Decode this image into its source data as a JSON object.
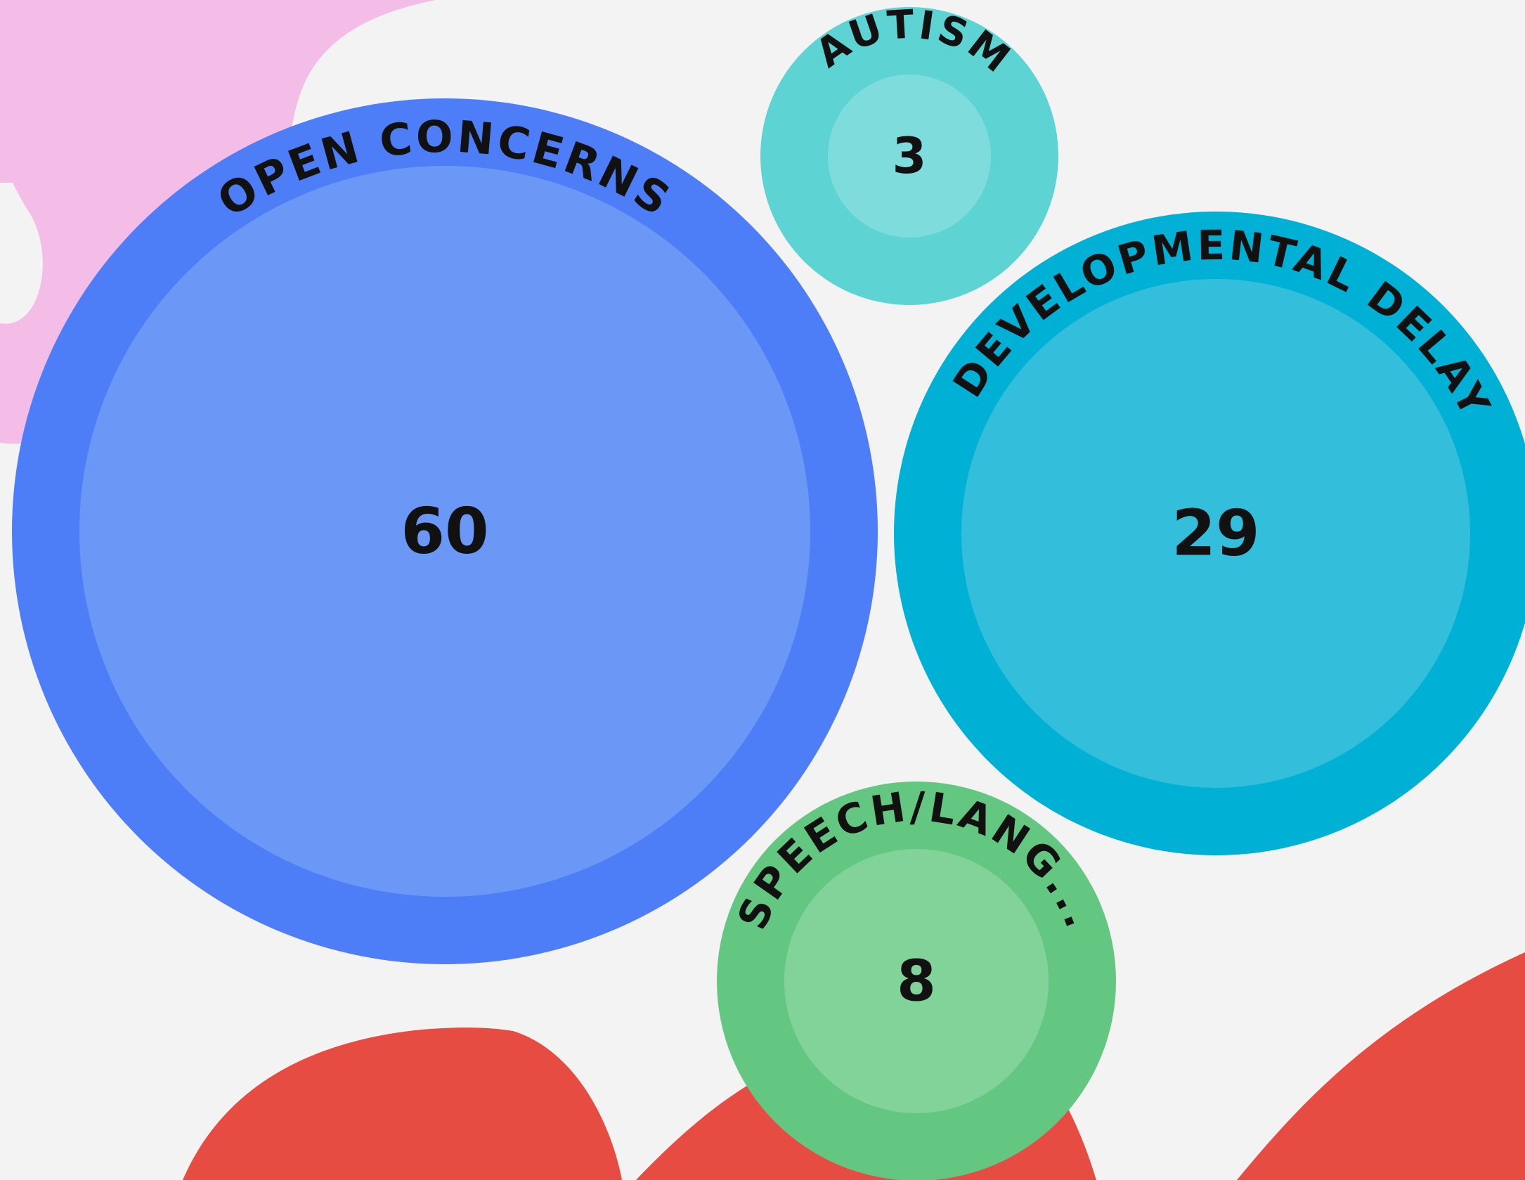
{
  "chart_data": {
    "type": "bubble",
    "title": "",
    "series": [
      {
        "label": "OPEN CONCERNS",
        "value": 60,
        "outer_color": "#4d7ef7",
        "inner_color": "#6b97f7"
      },
      {
        "label": "AUTISM",
        "value": 3,
        "outer_color": "#5dd3d4",
        "inner_color": "#7edcdc"
      },
      {
        "label": "DEVELOPMENTAL DELAY",
        "value": 29,
        "outer_color": "#00b1d5",
        "inner_color": "#33bfdc"
      },
      {
        "label": "SPEECH/LANG...",
        "value": 8,
        "outer_color": "#64c781",
        "inner_color": "#82d39a"
      }
    ]
  },
  "background": {
    "base_color": "#f3f3f3",
    "pink_blob_color": "#f4bde8",
    "red_blob_color": "#e74c42"
  }
}
